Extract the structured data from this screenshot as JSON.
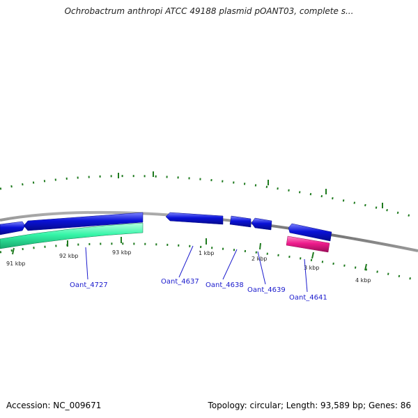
{
  "title": "Ochrobactrum anthropi ATCC 49188 plasmid pOANT03, complete s...",
  "footer": {
    "accession": "Accession: NC_009671",
    "summary": "Topology: circular; Length: 93,589 bp; Genes: 86"
  },
  "colors": {
    "backbone": "#808080",
    "forward_gene": "#0a12d8",
    "reverse_gene_highlight": "#36f5a8",
    "pink_gene": "#ee1c8c",
    "tick": "#1e7a1e",
    "gene_label": "#1a1acd",
    "scale_label": "#222222"
  },
  "scale_labels": [
    "91 kbp",
    "92 kbp",
    "93 kbp",
    "1 kbp",
    "2 kbp",
    "3 kbp",
    "4 kbp"
  ],
  "gene_labels": [
    "Oant_4727",
    "Oant_4637",
    "Oant_4638",
    "Oant_4639",
    "Oant_4641"
  ]
}
